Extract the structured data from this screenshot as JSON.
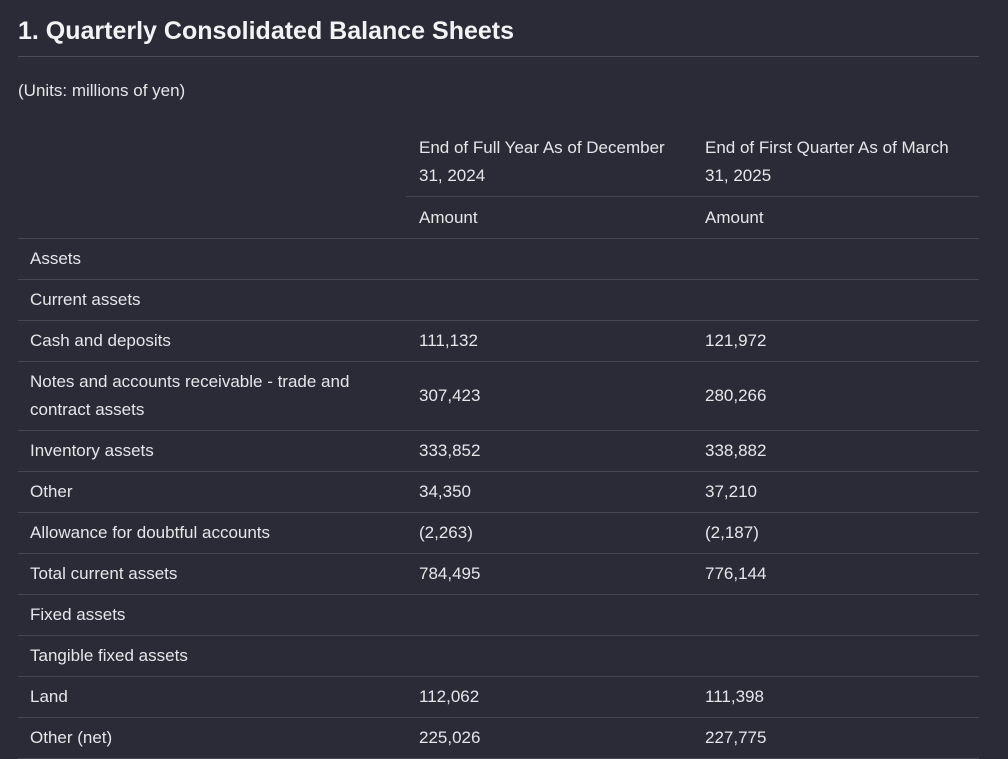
{
  "title": "1. Quarterly Consolidated Balance Sheets",
  "units": "(Units: millions of yen)",
  "columns": [
    {
      "header": "End of Full Year As of December 31, 2024",
      "sub": "Amount"
    },
    {
      "header": "End of First Quarter As of March 31, 2025",
      "sub": "Amount"
    }
  ],
  "rows": [
    {
      "label": "Assets",
      "v1": "",
      "v2": ""
    },
    {
      "label": "Current assets",
      "v1": "",
      "v2": ""
    },
    {
      "label": "Cash and deposits",
      "v1": "111,132",
      "v2": "121,972"
    },
    {
      "label": "Notes and accounts receivable - trade and contract assets",
      "v1": "307,423",
      "v2": "280,266"
    },
    {
      "label": "Inventory assets",
      "v1": "333,852",
      "v2": "338,882"
    },
    {
      "label": "Other",
      "v1": "34,350",
      "v2": "37,210"
    },
    {
      "label": "Allowance for doubtful accounts",
      "v1": "(2,263)",
      "v2": "(2,187)"
    },
    {
      "label": "Total current assets",
      "v1": "784,495",
      "v2": "776,144"
    },
    {
      "label": "Fixed assets",
      "v1": "",
      "v2": ""
    },
    {
      "label": "Tangible fixed assets",
      "v1": "",
      "v2": ""
    },
    {
      "label": "Land",
      "v1": "112,062",
      "v2": "111,398"
    },
    {
      "label": "Other (net)",
      "v1": "225,026",
      "v2": "227,775"
    }
  ]
}
